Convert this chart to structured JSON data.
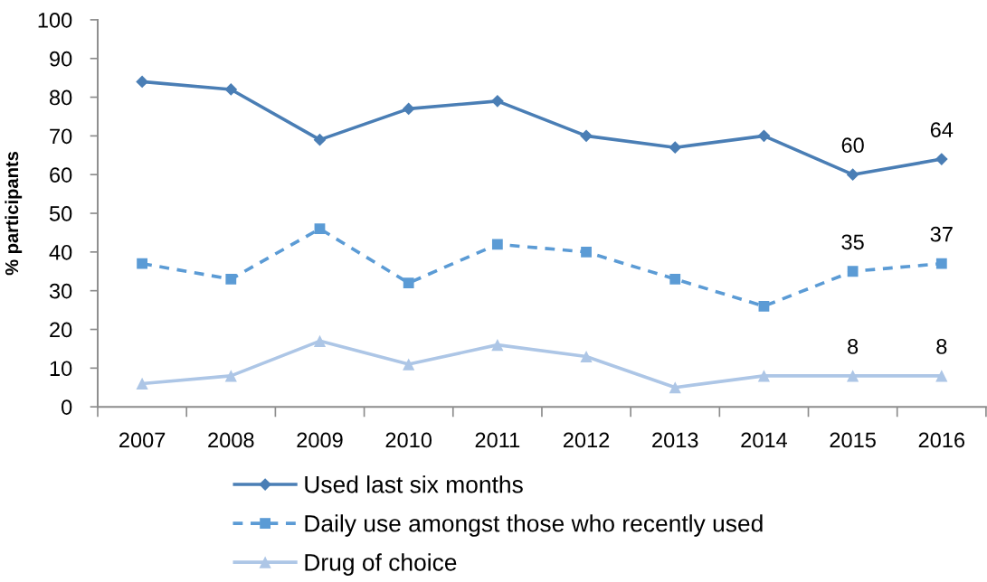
{
  "chart_data": {
    "type": "line",
    "ylabel": "% participants",
    "categories": [
      "2007",
      "2008",
      "2009",
      "2010",
      "2011",
      "2012",
      "2013",
      "2014",
      "2015",
      "2016"
    ],
    "ylim": [
      0,
      100
    ],
    "yticks": [
      0,
      10,
      20,
      30,
      40,
      50,
      60,
      70,
      80,
      90,
      100
    ],
    "grid": false,
    "legend": "bottom",
    "series": [
      {
        "name": "Used last six months",
        "color": "#4a7eb5",
        "marker": "diamond",
        "line_style": "solid",
        "values": [
          84,
          82,
          69,
          77,
          79,
          70,
          67,
          70,
          60,
          64
        ],
        "value_labels": [
          null,
          null,
          null,
          null,
          null,
          null,
          null,
          null,
          "60",
          "64"
        ]
      },
      {
        "name": "Daily use amongst those who recently used",
        "color": "#5b9bd5",
        "marker": "square",
        "line_style": "dashed",
        "values": [
          37,
          33,
          46,
          32,
          42,
          40,
          33,
          26,
          35,
          37
        ],
        "value_labels": [
          null,
          null,
          null,
          null,
          null,
          null,
          null,
          null,
          "35",
          "37"
        ]
      },
      {
        "name": "Drug of choice",
        "color": "#adc6e6",
        "marker": "triangle",
        "line_style": "solid",
        "values": [
          6,
          8,
          17,
          11,
          16,
          13,
          5,
          8,
          8,
          8
        ],
        "value_labels": [
          null,
          null,
          null,
          null,
          null,
          null,
          null,
          null,
          "8",
          "8"
        ]
      }
    ]
  }
}
